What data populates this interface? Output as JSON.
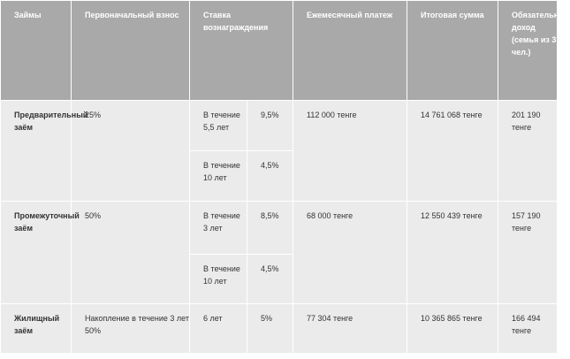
{
  "table": {
    "headers": {
      "loans": "Займы",
      "initial": "Первоначальный взнос",
      "rate": "Ставка вознаграждения",
      "monthly": "Ежемесячный платеж",
      "total": "Итоговая сумма",
      "income": "Обязательный доход (семья из 3 чел.)"
    },
    "rows": [
      {
        "name": "Предварительный заём",
        "initial": "25%",
        "terms": [
          {
            "period": "В течение 5,5 лет",
            "rate": "9,5%"
          },
          {
            "period": "В течение 10 лет",
            "rate": "4,5%"
          }
        ],
        "monthly": "112 000 тенге",
        "total": "14 761 068 тенге",
        "income": "201 190 тенге"
      },
      {
        "name": "Промежуточный заём",
        "initial": "50%",
        "terms": [
          {
            "period": "В течение 3 лет",
            "rate": "8,5%"
          },
          {
            "period": "В течение 10 лет",
            "rate": "4,5%"
          }
        ],
        "monthly": "68 000 тенге",
        "total": "12 550 439 тенге",
        "income": "157 190 тенге"
      },
      {
        "name": "Жилищный заём",
        "initial": "Накопление в течение 3 лет 50%",
        "terms": [
          {
            "period": "6 лет",
            "rate": "5%"
          }
        ],
        "monthly": "77 304 тенге",
        "total": "10 365 865 тенге",
        "income": "166 494 тенге"
      }
    ]
  }
}
